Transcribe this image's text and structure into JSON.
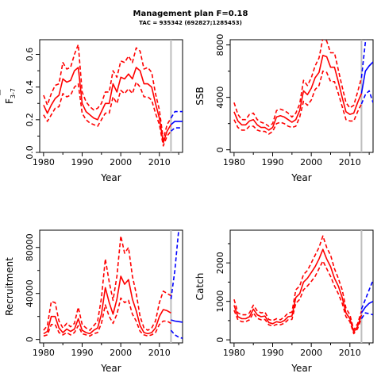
{
  "figure": {
    "title": "Management plan F=0.18",
    "subtitle": "TAC = 935342 (692827;1285453)"
  },
  "chart_data": [
    {
      "id": "f",
      "type": "line",
      "xlabel": "Year",
      "ylabel_main": "F",
      "ylabel_sub": "3-7",
      "xlim": [
        1979,
        2016
      ],
      "ylim": [
        0,
        0.69
      ],
      "xticks": [
        1980,
        1990,
        2000,
        2010
      ],
      "yticks": [
        0.0,
        0.2,
        0.4,
        0.6
      ],
      "ytick_labels": [
        "0.0",
        "0.2",
        "0.4",
        "0.6"
      ],
      "vline": 2013,
      "colors": {
        "historic": "#ff0000",
        "forecast": "#0000ff",
        "vline": "#bebebe"
      },
      "historic": {
        "years": [
          1980,
          1981,
          1982,
          1983,
          1984,
          1985,
          1986,
          1987,
          1988,
          1989,
          1990,
          1991,
          1992,
          1993,
          1994,
          1995,
          1996,
          1997,
          1998,
          1999,
          2000,
          2001,
          2002,
          2003,
          2004,
          2005,
          2006,
          2007,
          2008,
          2009,
          2010,
          2011,
          2012,
          2013
        ],
        "mid": [
          0.29,
          0.24,
          0.29,
          0.33,
          0.35,
          0.45,
          0.43,
          0.44,
          0.5,
          0.52,
          0.3,
          0.25,
          0.23,
          0.21,
          0.2,
          0.25,
          0.3,
          0.3,
          0.42,
          0.37,
          0.46,
          0.45,
          0.48,
          0.45,
          0.52,
          0.5,
          0.42,
          0.42,
          0.4,
          0.3,
          0.21,
          0.06,
          0.13,
          0.17
        ],
        "upper": [
          0.35,
          0.29,
          0.36,
          0.41,
          0.42,
          0.55,
          0.51,
          0.52,
          0.6,
          0.66,
          0.37,
          0.31,
          0.28,
          0.26,
          0.27,
          0.3,
          0.37,
          0.37,
          0.5,
          0.46,
          0.56,
          0.55,
          0.59,
          0.55,
          0.64,
          0.62,
          0.51,
          0.52,
          0.49,
          0.36,
          0.26,
          0.08,
          0.17,
          0.21
        ],
        "lower": [
          0.23,
          0.19,
          0.23,
          0.27,
          0.28,
          0.36,
          0.34,
          0.35,
          0.4,
          0.42,
          0.24,
          0.2,
          0.18,
          0.17,
          0.16,
          0.2,
          0.24,
          0.24,
          0.34,
          0.3,
          0.38,
          0.36,
          0.39,
          0.36,
          0.43,
          0.4,
          0.34,
          0.34,
          0.32,
          0.24,
          0.17,
          0.04,
          0.1,
          0.13
        ]
      },
      "forecast": {
        "years": [
          2013,
          2014,
          2015,
          2016
        ],
        "mid": [
          0.17,
          0.19,
          0.19,
          0.19
        ],
        "upper": [
          0.21,
          0.25,
          0.25,
          0.25
        ],
        "lower": [
          0.13,
          0.15,
          0.15,
          0.15
        ]
      }
    },
    {
      "id": "ssb",
      "type": "line",
      "xlabel": "Year",
      "ylabel_main": "SSB",
      "ylabel_sub": "",
      "xlim": [
        1979,
        2016
      ],
      "ylim": [
        -200,
        8400
      ],
      "xticks": [
        1980,
        1990,
        2000,
        2010
      ],
      "yticks": [
        0,
        4000,
        8000
      ],
      "ytick_labels": [
        "0",
        "4000",
        "8000"
      ],
      "vline": 2013,
      "colors": {
        "historic": "#ff0000",
        "forecast": "#0000ff",
        "vline": "#bebebe"
      },
      "historic": {
        "years": [
          1980,
          1981,
          1982,
          1983,
          1984,
          1985,
          1986,
          1987,
          1988,
          1989,
          1990,
          1991,
          1992,
          1993,
          1994,
          1995,
          1996,
          1997,
          1998,
          1999,
          2000,
          2001,
          2002,
          2003,
          2004,
          2005,
          2006,
          2007,
          2008,
          2009,
          2010,
          2011,
          2012,
          2013
        ],
        "mid": [
          2900,
          2200,
          1900,
          1900,
          2200,
          2300,
          1900,
          1700,
          1700,
          1500,
          1700,
          2500,
          2600,
          2500,
          2300,
          2100,
          2300,
          3000,
          4500,
          4200,
          4700,
          5500,
          5900,
          7200,
          7100,
          6300,
          6300,
          5200,
          4000,
          2900,
          2700,
          2800,
          3600,
          4300
        ],
        "upper": [
          3600,
          2700,
          2300,
          2300,
          2700,
          2800,
          2300,
          2100,
          2000,
          1800,
          2000,
          3000,
          3100,
          3000,
          2800,
          2500,
          2800,
          3500,
          5300,
          4900,
          5500,
          6400,
          7000,
          8500,
          8300,
          7400,
          7400,
          6100,
          4800,
          3600,
          3200,
          3400,
          4400,
          5500
        ],
        "lower": [
          2300,
          1700,
          1500,
          1500,
          1800,
          1800,
          1500,
          1400,
          1400,
          1200,
          1400,
          2000,
          2100,
          2000,
          1800,
          1700,
          1800,
          2500,
          3700,
          3400,
          3800,
          4600,
          4900,
          6000,
          5900,
          5200,
          5200,
          4300,
          3300,
          2300,
          2200,
          2200,
          2900,
          3500
        ]
      },
      "forecast": {
        "years": [
          2013,
          2014,
          2015,
          2016
        ],
        "mid": [
          4300,
          6000,
          6400,
          6700
        ],
        "upper": [
          5500,
          8200,
          10000,
          11000
        ],
        "lower": [
          3500,
          4200,
          4500,
          3600
        ]
      }
    },
    {
      "id": "recruitment",
      "type": "line",
      "xlabel": "Year",
      "ylabel_main": "Recruitment",
      "ylabel_sub": "",
      "xlim": [
        1979,
        2016
      ],
      "ylim": [
        -3000,
        95000
      ],
      "xticks": [
        1980,
        1990,
        2000,
        2010
      ],
      "yticks": [
        0,
        40000,
        80000
      ],
      "ytick_labels": [
        "0",
        "40000",
        "80000"
      ],
      "vline": 2013,
      "colors": {
        "historic": "#ff0000",
        "forecast": "#0000ff",
        "vline": "#bebebe"
      },
      "historic": {
        "years": [
          1980,
          1981,
          1982,
          1983,
          1984,
          1985,
          1986,
          1987,
          1988,
          1989,
          1990,
          1991,
          1992,
          1993,
          1994,
          1995,
          1996,
          1997,
          1998,
          1999,
          2000,
          2001,
          2002,
          2003,
          2004,
          2005,
          2006,
          2007,
          2008,
          2009,
          2010,
          2011,
          2012,
          2013
        ],
        "mid": [
          5000,
          7000,
          20000,
          20000,
          10000,
          6000,
          9000,
          7000,
          9000,
          18000,
          8000,
          6000,
          5000,
          8000,
          10000,
          22000,
          45000,
          32000,
          22000,
          35000,
          55000,
          48000,
          52000,
          35000,
          25000,
          12000,
          6000,
          5000,
          6000,
          10000,
          20000,
          26000,
          25000,
          23000
        ],
        "upper": [
          8000,
          12000,
          33000,
          32000,
          16000,
          10000,
          14000,
          11000,
          14000,
          28000,
          13000,
          10000,
          8000,
          12000,
          16000,
          36000,
          70000,
          50000,
          34000,
          55000,
          90000,
          75000,
          80000,
          55000,
          40000,
          20000,
          10000,
          8000,
          10000,
          16000,
          32000,
          42000,
          40000,
          38000
        ],
        "lower": [
          3000,
          4000,
          13000,
          13000,
          6000,
          4000,
          6000,
          4000,
          6000,
          12000,
          5000,
          4000,
          3000,
          5000,
          6000,
          14000,
          30000,
          20000,
          14000,
          22000,
          36000,
          32000,
          34000,
          22000,
          16000,
          7000,
          4000,
          3000,
          4000,
          6000,
          13000,
          16000,
          16000,
          14000
        ]
      },
      "forecast": {
        "years": [
          2013,
          2014,
          2015,
          2016
        ],
        "mid": [
          17000,
          16000,
          15500,
          15000
        ],
        "upper": [
          35000,
          60000,
          95000,
          120000
        ],
        "lower": [
          8000,
          4000,
          2000,
          1000
        ]
      }
    },
    {
      "id": "catch",
      "type": "line",
      "xlabel": "Year",
      "ylabel_main": "Catch",
      "ylabel_sub": "",
      "xlim": [
        1979,
        2016
      ],
      "ylim": [
        -80,
        2850
      ],
      "xticks": [
        1980,
        1990,
        2000,
        2010
      ],
      "yticks": [
        0,
        1000,
        2000
      ],
      "ytick_labels": [
        "0",
        "1000",
        "2000"
      ],
      "vline": 2013,
      "colors": {
        "historic": "#ff0000",
        "forecast": "#0000ff",
        "vline": "#bebebe"
      },
      "historic": {
        "years": [
          1980,
          1981,
          1982,
          1983,
          1984,
          1985,
          1986,
          1987,
          1988,
          1989,
          1990,
          1991,
          1992,
          1993,
          1994,
          1995,
          1996,
          1997,
          1998,
          1999,
          2000,
          2001,
          2002,
          2003,
          2004,
          2005,
          2006,
          2007,
          2008,
          2009,
          2010,
          2011,
          2012,
          2013
        ],
        "mid": [
          900,
          600,
          550,
          550,
          600,
          800,
          650,
          600,
          620,
          450,
          420,
          470,
          450,
          500,
          600,
          620,
          1100,
          1200,
          1500,
          1600,
          1750,
          1900,
          2100,
          2350,
          2100,
          1900,
          1600,
          1400,
          1100,
          700,
          550,
          200,
          350,
          650
        ],
        "upper": [
          1050,
          700,
          650,
          650,
          700,
          900,
          750,
          700,
          720,
          530,
          500,
          550,
          520,
          590,
          700,
          720,
          1300,
          1400,
          1700,
          1800,
          2000,
          2200,
          2400,
          2700,
          2400,
          2200,
          1850,
          1600,
          1300,
          820,
          650,
          260,
          420,
          750
        ],
        "lower": [
          770,
          520,
          470,
          470,
          520,
          700,
          560,
          520,
          530,
          390,
          360,
          400,
          390,
          430,
          520,
          530,
          950,
          1050,
          1300,
          1400,
          1520,
          1650,
          1850,
          2050,
          1850,
          1650,
          1400,
          1200,
          950,
          600,
          470,
          160,
          290,
          560
        ]
      },
      "forecast": {
        "years": [
          2013,
          2014,
          2015,
          2016
        ],
        "mid": [
          700,
          850,
          950,
          1000
        ],
        "upper": [
          800,
          1050,
          1300,
          1550
        ],
        "lower": [
          550,
          700,
          680,
          650
        ]
      }
    }
  ]
}
